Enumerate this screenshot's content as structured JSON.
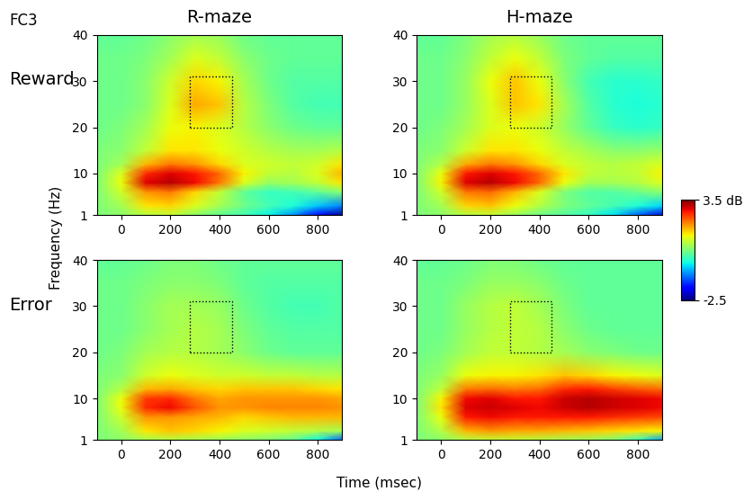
{
  "figure": {
    "label": "FC3",
    "xlabel": "Time (msec)",
    "ylabel": "Frequency (Hz)",
    "columns": [
      "R-maze",
      "H-maze"
    ],
    "rows": [
      "Reward",
      "Error"
    ],
    "colorbar": {
      "range": [
        -2.5,
        3.5
      ],
      "ticks": [
        {
          "value": 3.5,
          "label": "3.5 dB"
        },
        -2.5
      ]
    }
  },
  "chart_data": [
    {
      "type": "heatmap",
      "x": [
        -100,
        0,
        100,
        200,
        300,
        400,
        500,
        600,
        700,
        800,
        900
      ],
      "y": [
        1,
        3,
        6,
        8,
        10,
        12,
        15,
        20,
        25,
        30,
        35,
        40
      ],
      "cells": [
        [
          0.5,
          0.6,
          0.9,
          1.0,
          0.6,
          0.3,
          0.1,
          -0.3,
          -0.9,
          -1.8,
          -2.4
        ],
        [
          0.5,
          0.8,
          1.5,
          1.6,
          1.2,
          0.8,
          0.4,
          0.1,
          -0.2,
          -0.6,
          -1.0
        ],
        [
          0.5,
          1.1,
          2.0,
          2.2,
          1.6,
          1.0,
          0.3,
          0.0,
          0.1,
          0.3,
          0.6
        ],
        [
          0.5,
          1.3,
          3.0,
          3.2,
          2.9,
          2.2,
          1.2,
          0.7,
          0.8,
          1.0,
          1.5
        ],
        [
          0.5,
          1.2,
          2.7,
          3.0,
          2.8,
          2.3,
          1.4,
          1.0,
          0.9,
          1.2,
          1.8
        ],
        [
          0.5,
          0.8,
          1.8,
          2.2,
          2.0,
          1.6,
          1.2,
          1.1,
          1.0,
          1.1,
          1.5
        ],
        [
          0.5,
          0.6,
          1.0,
          1.5,
          1.5,
          1.3,
          1.1,
          0.9,
          0.8,
          0.8,
          0.9
        ],
        [
          0.4,
          0.5,
          0.8,
          1.3,
          1.4,
          1.2,
          0.9,
          0.6,
          0.4,
          0.3,
          0.3
        ],
        [
          0.4,
          0.4,
          0.6,
          1.2,
          1.9,
          1.7,
          0.9,
          0.5,
          0.2,
          0.1,
          0.1
        ],
        [
          0.4,
          0.4,
          0.6,
          1.1,
          1.6,
          1.4,
          0.8,
          0.4,
          0.2,
          0.2,
          0.2
        ],
        [
          0.4,
          0.4,
          0.5,
          0.8,
          1.2,
          1.0,
          0.6,
          0.4,
          0.3,
          0.3,
          0.3
        ],
        [
          0.3,
          0.3,
          0.4,
          0.6,
          0.8,
          0.7,
          0.4,
          0.3,
          0.3,
          0.3,
          0.3
        ]
      ],
      "roi": {
        "x": [
          280,
          450
        ],
        "y": [
          20,
          31
        ]
      },
      "xlim": [
        -100,
        900
      ],
      "ylim": [
        1,
        40
      ],
      "xticks": [
        0,
        200,
        400,
        600,
        800
      ],
      "yticks": [
        1,
        10,
        20,
        30,
        40
      ]
    },
    {
      "type": "heatmap",
      "x": [
        -100,
        0,
        100,
        200,
        300,
        400,
        500,
        600,
        700,
        800,
        900
      ],
      "y": [
        1,
        3,
        6,
        8,
        10,
        12,
        15,
        20,
        25,
        30,
        35,
        40
      ],
      "cells": [
        [
          0.5,
          0.6,
          0.9,
          1.0,
          0.7,
          0.4,
          0.2,
          0.0,
          -0.4,
          -1.2,
          -2.0
        ],
        [
          0.5,
          0.8,
          1.6,
          1.7,
          1.3,
          0.9,
          0.5,
          0.3,
          0.1,
          -0.2,
          -0.5
        ],
        [
          0.5,
          1.1,
          2.2,
          2.3,
          1.8,
          1.2,
          0.5,
          0.2,
          0.2,
          0.4,
          0.6
        ],
        [
          0.5,
          1.4,
          3.0,
          3.2,
          2.9,
          2.3,
          1.3,
          0.8,
          0.8,
          0.9,
          1.2
        ],
        [
          0.5,
          1.3,
          2.8,
          3.0,
          2.8,
          2.3,
          1.5,
          1.0,
          0.9,
          1.0,
          1.4
        ],
        [
          0.5,
          0.9,
          1.9,
          2.2,
          2.0,
          1.6,
          1.2,
          1.0,
          0.9,
          1.0,
          1.2
        ],
        [
          0.5,
          0.6,
          1.1,
          1.5,
          1.5,
          1.3,
          1.0,
          0.8,
          0.6,
          0.6,
          0.7
        ],
        [
          0.4,
          0.5,
          0.8,
          1.2,
          1.3,
          1.1,
          0.7,
          0.3,
          0.0,
          -0.1,
          0.0
        ],
        [
          0.4,
          0.4,
          0.7,
          1.2,
          1.7,
          1.5,
          0.8,
          0.2,
          -0.1,
          -0.2,
          -0.1
        ],
        [
          0.4,
          0.4,
          0.7,
          1.3,
          1.7,
          1.3,
          0.6,
          0.1,
          -0.1,
          -0.1,
          0.0
        ],
        [
          0.4,
          0.4,
          0.6,
          1.0,
          1.3,
          1.0,
          0.5,
          0.3,
          0.2,
          0.2,
          0.2
        ],
        [
          0.3,
          0.3,
          0.5,
          0.8,
          0.9,
          0.7,
          0.4,
          0.3,
          0.3,
          0.3,
          0.3
        ]
      ],
      "roi": {
        "x": [
          280,
          450
        ],
        "y": [
          20,
          31
        ]
      },
      "xlim": [
        -100,
        900
      ],
      "ylim": [
        1,
        40
      ],
      "xticks": [
        0,
        200,
        400,
        600,
        800
      ],
      "yticks": [
        1,
        10,
        20,
        30,
        40
      ]
    },
    {
      "type": "heatmap",
      "x": [
        -100,
        0,
        100,
        200,
        300,
        400,
        500,
        600,
        700,
        800,
        900
      ],
      "y": [
        1,
        3,
        6,
        8,
        10,
        12,
        15,
        20,
        25,
        30,
        35,
        40
      ],
      "cells": [
        [
          0.5,
          0.6,
          0.8,
          0.9,
          0.8,
          0.7,
          0.6,
          0.5,
          0.3,
          -0.3,
          -1.2
        ],
        [
          0.5,
          0.8,
          1.5,
          1.7,
          1.6,
          1.4,
          1.2,
          1.1,
          1.0,
          0.9,
          0.8
        ],
        [
          0.5,
          1.1,
          2.0,
          2.0,
          1.9,
          1.8,
          1.6,
          1.7,
          1.8,
          1.8,
          1.8
        ],
        [
          0.5,
          1.3,
          2.7,
          2.9,
          2.4,
          2.0,
          2.0,
          2.1,
          2.1,
          2.1,
          2.0
        ],
        [
          0.5,
          1.3,
          2.6,
          2.7,
          2.2,
          1.9,
          2.0,
          2.0,
          2.0,
          2.0,
          1.9
        ],
        [
          0.5,
          0.9,
          1.8,
          1.9,
          1.7,
          1.6,
          1.7,
          1.7,
          1.7,
          1.6,
          1.5
        ],
        [
          0.5,
          0.6,
          1.1,
          1.3,
          1.2,
          1.1,
          1.1,
          1.0,
          1.0,
          0.9,
          0.9
        ],
        [
          0.4,
          0.5,
          0.8,
          0.9,
          0.9,
          0.8,
          0.6,
          0.4,
          0.3,
          0.3,
          0.3
        ],
        [
          0.4,
          0.4,
          0.6,
          0.8,
          0.9,
          0.8,
          0.5,
          0.3,
          0.2,
          0.2,
          0.2
        ],
        [
          0.4,
          0.4,
          0.6,
          0.8,
          0.8,
          0.7,
          0.4,
          0.2,
          0.1,
          0.1,
          0.2
        ],
        [
          0.4,
          0.4,
          0.5,
          0.6,
          0.6,
          0.5,
          0.3,
          0.2,
          0.2,
          0.2,
          0.2
        ],
        [
          0.3,
          0.3,
          0.4,
          0.5,
          0.5,
          0.4,
          0.3,
          0.3,
          0.3,
          0.3,
          0.3
        ]
      ],
      "roi": {
        "x": [
          280,
          450
        ],
        "y": [
          20,
          31
        ]
      },
      "xlim": [
        -100,
        900
      ],
      "ylim": [
        1,
        40
      ],
      "xticks": [
        0,
        200,
        400,
        600,
        800
      ],
      "yticks": [
        1,
        10,
        20,
        30,
        40
      ]
    },
    {
      "type": "heatmap",
      "x": [
        -100,
        0,
        100,
        200,
        300,
        400,
        500,
        600,
        700,
        800,
        900
      ],
      "y": [
        1,
        3,
        6,
        8,
        10,
        12,
        15,
        20,
        25,
        30,
        35,
        40
      ],
      "cells": [
        [
          0.5,
          0.6,
          0.9,
          1.0,
          1.0,
          0.9,
          0.8,
          0.7,
          0.5,
          0.0,
          -0.8
        ],
        [
          0.5,
          0.9,
          1.8,
          2.0,
          1.9,
          1.9,
          1.8,
          1.7,
          1.6,
          1.5,
          1.4
        ],
        [
          0.5,
          1.3,
          2.8,
          2.9,
          2.8,
          2.8,
          2.8,
          2.8,
          2.7,
          2.6,
          2.5
        ],
        [
          0.5,
          1.5,
          3.0,
          3.1,
          3.0,
          2.9,
          3.1,
          3.2,
          3.1,
          3.0,
          2.9
        ],
        [
          0.5,
          1.4,
          2.9,
          3.0,
          2.8,
          2.8,
          3.1,
          3.2,
          3.1,
          3.0,
          2.9
        ],
        [
          0.5,
          1.0,
          2.2,
          2.3,
          2.2,
          2.3,
          2.7,
          2.8,
          2.6,
          2.4,
          2.3
        ],
        [
          0.5,
          0.7,
          1.3,
          1.4,
          1.4,
          1.5,
          1.7,
          1.6,
          1.4,
          1.3,
          1.2
        ],
        [
          0.4,
          0.5,
          0.8,
          1.0,
          1.0,
          0.9,
          0.8,
          0.6,
          0.5,
          0.4,
          0.4
        ],
        [
          0.4,
          0.4,
          0.7,
          0.9,
          1.0,
          0.9,
          0.6,
          0.4,
          0.3,
          0.3,
          0.3
        ],
        [
          0.4,
          0.4,
          0.7,
          0.9,
          1.0,
          0.8,
          0.5,
          0.3,
          0.3,
          0.3,
          0.3
        ],
        [
          0.4,
          0.4,
          0.5,
          0.7,
          0.7,
          0.6,
          0.4,
          0.3,
          0.3,
          0.3,
          0.3
        ],
        [
          0.3,
          0.3,
          0.4,
          0.5,
          0.5,
          0.4,
          0.3,
          0.3,
          0.3,
          0.3,
          0.3
        ]
      ],
      "roi": {
        "x": [
          280,
          450
        ],
        "y": [
          20,
          31
        ]
      },
      "xlim": [
        -100,
        900
      ],
      "ylim": [
        1,
        40
      ],
      "xticks": [
        0,
        200,
        400,
        600,
        800
      ],
      "yticks": [
        1,
        10,
        20,
        30,
        40
      ]
    }
  ]
}
